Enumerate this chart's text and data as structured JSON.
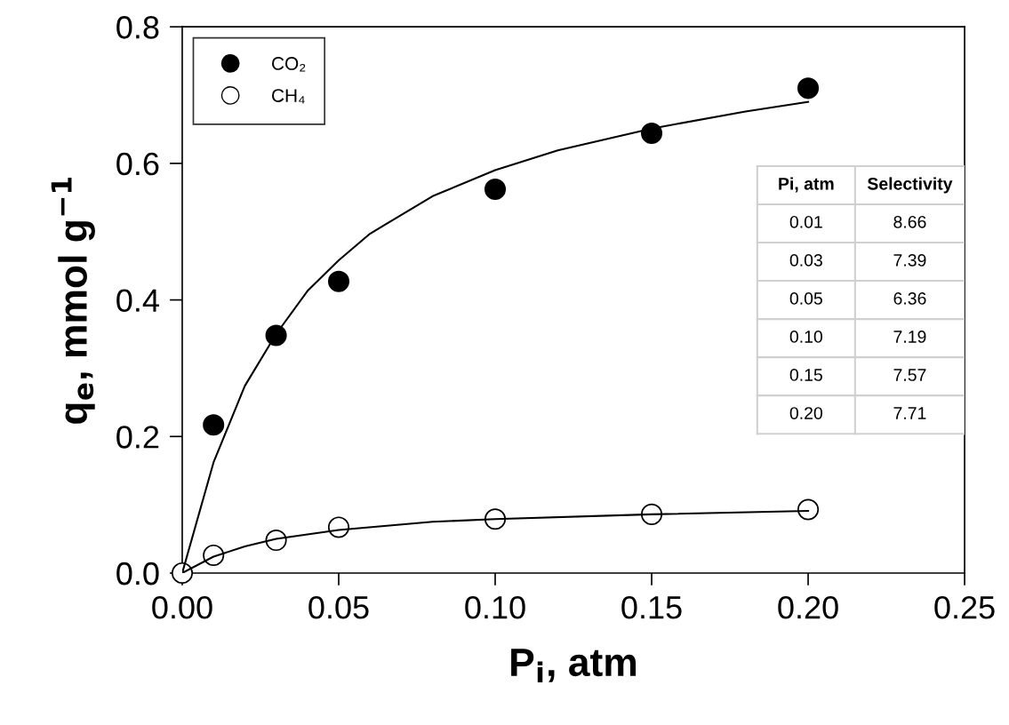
{
  "chart_data": {
    "type": "scatter",
    "xlabel": "P$_{i}$, atm",
    "ylabel": "q$_{e}$, mmol g$^{−1}$",
    "xlim": [
      0,
      0.25
    ],
    "ylim": [
      0,
      0.8
    ],
    "xticks": [
      {
        "value": 0,
        "label": "0.00"
      },
      {
        "value": 0.05,
        "label": "0.05"
      },
      {
        "value": 0.1,
        "label": "0.10"
      },
      {
        "value": 0.15,
        "label": "0.15"
      },
      {
        "value": 0.2,
        "label": "0.20"
      },
      {
        "value": 0.25,
        "label": "0.25"
      }
    ],
    "yticks": [
      {
        "value": 0,
        "label": "0.0"
      },
      {
        "value": 0.2,
        "label": "0.2"
      },
      {
        "value": 0.4,
        "label": "0.4"
      },
      {
        "value": 0.6,
        "label": "0.6"
      },
      {
        "value": 0.8,
        "label": "0.8"
      }
    ],
    "grid": false,
    "legend": "top left",
    "marker": "circle",
    "series": [
      {
        "type": "line",
        "marker": "none",
        "color": "#000000",
        "x": [
          0,
          0.01,
          0.02,
          0.03,
          0.04,
          0.05,
          0.06,
          0.08,
          0.1,
          0.12,
          0.15,
          0.18,
          0.2
        ],
        "values": [
          0,
          0.162,
          0.274,
          0.35,
          0.413,
          0.458,
          0.497,
          0.552,
          0.59,
          0.619,
          0.651,
          0.676,
          0.69
        ]
      },
      {
        "type": "line",
        "marker": "none",
        "color": "#000000",
        "x": [
          0,
          0.01,
          0.02,
          0.03,
          0.05,
          0.08,
          0.1,
          0.15,
          0.2
        ],
        "values": [
          0,
          0.024,
          0.039,
          0.05,
          0.063,
          0.075,
          0.079,
          0.086,
          0.091
        ]
      },
      {
        "name": "CO₂",
        "color": "#000000",
        "x": [
          0.01,
          0.03,
          0.05,
          0.1,
          0.15,
          0.2
        ],
        "values": [
          0.217,
          0.348,
          0.427,
          0.562,
          0.644,
          0.71
        ]
      },
      {
        "name": "CH₄",
        "color": "#ffffff",
        "x": [
          0,
          0.01,
          0.03,
          0.05,
          0.1,
          0.15,
          0.2
        ],
        "values": [
          0,
          0.026,
          0.048,
          0.067,
          0.079,
          0.086,
          0.093
        ]
      }
    ],
    "annotations": [
      "Pi, atm",
      "Selectivity",
      "0.01",
      "8.66",
      "0.03",
      "7.39",
      "0.05",
      "6.36",
      "0.10",
      "7.19",
      "0.15",
      "7.57",
      "0.20",
      "7.71"
    ]
  }
}
